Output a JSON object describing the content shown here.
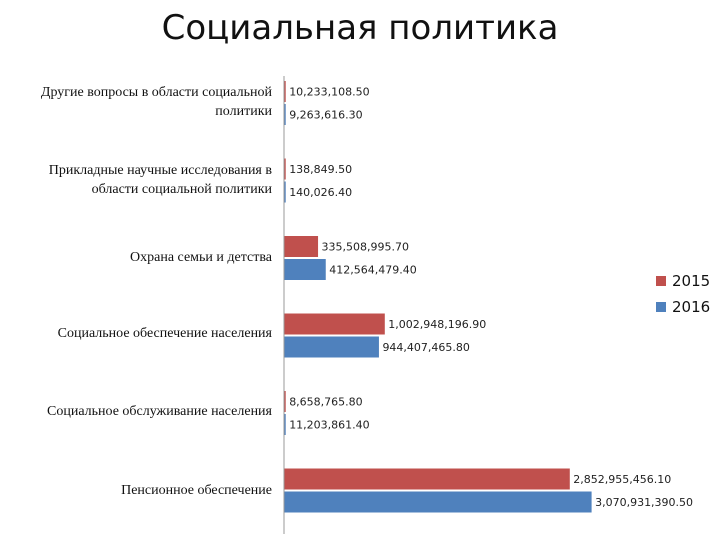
{
  "chart_data": {
    "type": "bar",
    "orientation": "horizontal",
    "title": "Социальная политика",
    "categories": [
      "Другие вопросы в области социальной политики",
      "Прикладные научные исследования в области социальной политики",
      "Охрана семьи и детства",
      "Социальное обеспечение населения",
      "Социальное обслуживание населения",
      "Пенсионное обеспечение"
    ],
    "series": [
      {
        "name": "2015",
        "color": "#c0504d",
        "values": [
          10233108.5,
          138849.5,
          335508995.7,
          1002948196.9,
          8658765.8,
          2852955456.1
        ],
        "labels": [
          "10,233,108.50",
          "138,849.50",
          "335,508,995.70",
          "1,002,948,196.90",
          "8,658,765.80",
          "2,852,955,456.10"
        ]
      },
      {
        "name": "2016",
        "color": "#4f81bd",
        "values": [
          9263616.3,
          140026.4,
          412564479.4,
          944407465.8,
          11203861.4,
          3070931390.5
        ],
        "labels": [
          "9,263,616.30",
          "140,026.40",
          "412,564,479.40",
          "944,407,465.80",
          "11,203,861.40",
          "3,070,931,390.50"
        ]
      }
    ],
    "xlim": [
      0,
      3200000000
    ],
    "legend_position": "right",
    "grid": false
  }
}
